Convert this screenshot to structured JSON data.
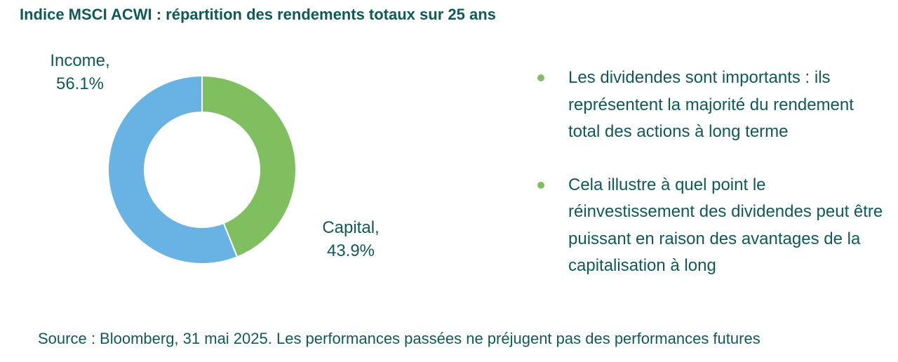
{
  "title": "Indice MSCI ACWI : répartition des rendements totaux sur 25 ans",
  "chart_data": {
    "type": "pie",
    "donut": true,
    "slices": [
      {
        "name": "Capital",
        "value": 43.9,
        "label_name": "Capital,",
        "label_value": "43.9%",
        "color": "#7fbf5f"
      },
      {
        "name": "Income",
        "value": 56.1,
        "label_name": "Income,",
        "label_value": "56.1%",
        "color": "#68b3e3"
      }
    ]
  },
  "bullets": [
    {
      "text": "Les dividendes sont importants : ils représentent la majorité du rendement total des actions à long terme"
    },
    {
      "text": "Cela illustre à quel point le réinvestissement des dividendes peut être puissant en raison des avantages de la capitalisation à long"
    }
  ],
  "colors": {
    "text": "#0f5a57",
    "bullet": "#7fbf5f"
  },
  "source": "Source : Bloomberg, 31 mai 2025. Les performances passées ne préjugent pas des performances futures"
}
